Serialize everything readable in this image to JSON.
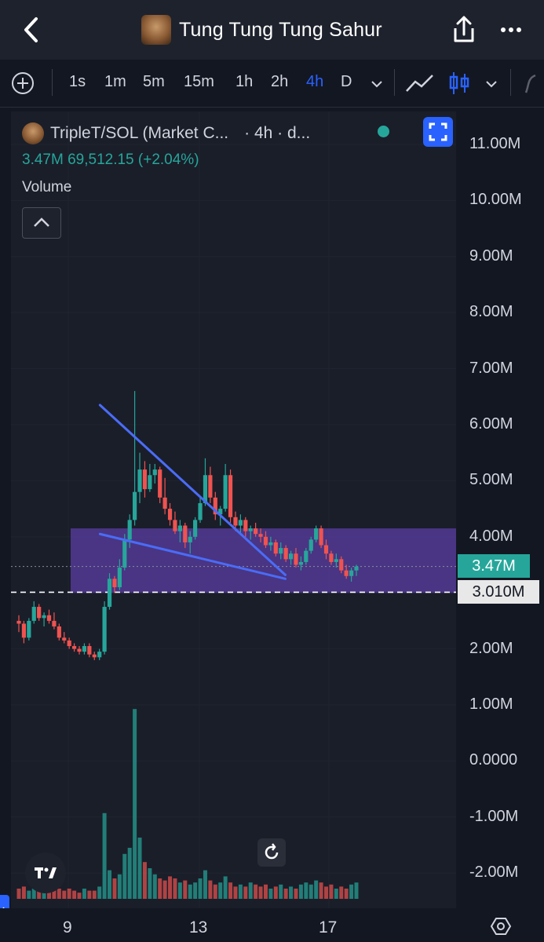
{
  "header": {
    "title": "Tung Tung Tung Sahur",
    "back_icon": "chevron-left-icon",
    "share_icon": "share-icon",
    "more_icon": "more-dots-icon"
  },
  "toolbar": {
    "timeframes": [
      "1s",
      "1m",
      "5m",
      "15m",
      "1h",
      "2h",
      "4h",
      "D"
    ],
    "active_timeframe": "4h"
  },
  "legend": {
    "symbol": "TripleT/SOL (Market C...",
    "interval": "· 4h · d...",
    "value": "3.47M",
    "change": "69,512.15 (+2.04%)",
    "volume_label": "Volume"
  },
  "price_axis": {
    "labels": [
      "11.00M",
      "10.00M",
      "9.00M",
      "8.00M",
      "7.00M",
      "6.00M",
      "5.00M",
      "4.00M",
      "2.00M",
      "1.00M",
      "0.0000",
      "-1.00M",
      "-2.00M"
    ],
    "current_price_tag": "3.47M",
    "line_price_tag": "3.010M"
  },
  "time_axis": {
    "labels": [
      "9",
      "13",
      "17"
    ]
  },
  "colors": {
    "up": "#26a69a",
    "down": "#ef5350",
    "accent": "#2962ff",
    "zone": "#5b3fa6",
    "trendline": "#4a6cf7"
  },
  "chart_data": {
    "type": "candlestick",
    "price_unit": "M",
    "ylim": [
      -2.3,
      11.5
    ],
    "zone": {
      "low": 3.0,
      "high": 4.15
    },
    "horizontal_line": 3.01,
    "current_price": 3.47,
    "trendlines": [
      {
        "from": [
          0.2404,
          6.35
        ],
        "to": [
          0.7895,
          3.32
        ]
      },
      {
        "from": [
          0.2404,
          4.05
        ],
        "to": [
          0.7895,
          3.25
        ]
      }
    ],
    "candles": [
      [
        2.5,
        2.6,
        2.3,
        2.45
      ],
      [
        2.45,
        2.5,
        2.1,
        2.2
      ],
      [
        2.2,
        2.55,
        2.15,
        2.5
      ],
      [
        2.5,
        2.85,
        2.45,
        2.75
      ],
      [
        2.75,
        2.8,
        2.5,
        2.55
      ],
      [
        2.55,
        2.65,
        2.4,
        2.6
      ],
      [
        2.6,
        2.7,
        2.45,
        2.5
      ],
      [
        2.5,
        2.65,
        2.35,
        2.4
      ],
      [
        2.4,
        2.45,
        2.15,
        2.2
      ],
      [
        2.2,
        2.3,
        2.1,
        2.15
      ],
      [
        2.15,
        2.2,
        2.0,
        2.05
      ],
      [
        2.05,
        2.1,
        1.95,
        2.0
      ],
      [
        2.0,
        2.05,
        1.9,
        1.95
      ],
      [
        1.95,
        2.1,
        1.9,
        2.05
      ],
      [
        2.05,
        2.1,
        1.85,
        1.9
      ],
      [
        1.9,
        1.95,
        1.8,
        1.85
      ],
      [
        1.85,
        2.0,
        1.8,
        1.95
      ],
      [
        1.95,
        2.85,
        1.9,
        2.75
      ],
      [
        2.75,
        3.35,
        2.7,
        3.25
      ],
      [
        3.25,
        3.3,
        3.0,
        3.1
      ],
      [
        3.1,
        3.6,
        3.05,
        3.45
      ],
      [
        3.45,
        4.05,
        3.4,
        3.95
      ],
      [
        3.95,
        4.4,
        3.8,
        4.3
      ],
      [
        4.3,
        6.6,
        4.2,
        4.8
      ],
      [
        4.8,
        5.5,
        4.6,
        5.2
      ],
      [
        5.2,
        5.35,
        4.7,
        4.85
      ],
      [
        4.85,
        5.3,
        4.8,
        5.1
      ],
      [
        5.1,
        5.3,
        4.95,
        5.2
      ],
      [
        5.2,
        5.25,
        4.6,
        4.7
      ],
      [
        4.7,
        5.05,
        4.4,
        4.5
      ],
      [
        4.5,
        4.6,
        4.2,
        4.3
      ],
      [
        4.3,
        4.45,
        4.05,
        4.1
      ],
      [
        4.1,
        4.3,
        3.9,
        4.2
      ],
      [
        4.2,
        4.25,
        3.8,
        3.9
      ],
      [
        3.9,
        4.1,
        3.7,
        4.0
      ],
      [
        4.0,
        4.35,
        3.95,
        4.3
      ],
      [
        4.3,
        4.7,
        4.25,
        4.6
      ],
      [
        4.6,
        5.4,
        4.55,
        5.1
      ],
      [
        5.1,
        5.25,
        4.6,
        4.7
      ],
      [
        4.7,
        4.8,
        4.3,
        4.4
      ],
      [
        4.4,
        4.55,
        4.2,
        4.5
      ],
      [
        4.5,
        5.3,
        4.45,
        5.1
      ],
      [
        5.1,
        5.2,
        4.25,
        4.35
      ],
      [
        4.35,
        4.45,
        4.1,
        4.2
      ],
      [
        4.2,
        4.4,
        4.05,
        4.3
      ],
      [
        4.3,
        4.35,
        4.0,
        4.1
      ],
      [
        4.1,
        4.2,
        3.95,
        4.15
      ],
      [
        4.15,
        4.25,
        4.0,
        4.05
      ],
      [
        4.05,
        4.15,
        3.9,
        4.0
      ],
      [
        4.0,
        4.1,
        3.8,
        3.85
      ],
      [
        3.85,
        4.0,
        3.75,
        3.9
      ],
      [
        3.9,
        3.95,
        3.65,
        3.7
      ],
      [
        3.7,
        3.9,
        3.6,
        3.8
      ],
      [
        3.8,
        3.85,
        3.55,
        3.6
      ],
      [
        3.6,
        3.75,
        3.5,
        3.7
      ],
      [
        3.7,
        3.8,
        3.45,
        3.5
      ],
      [
        3.5,
        3.65,
        3.4,
        3.55
      ],
      [
        3.55,
        3.8,
        3.5,
        3.75
      ],
      [
        3.75,
        4.0,
        3.7,
        3.95
      ],
      [
        3.95,
        4.2,
        3.9,
        4.15
      ],
      [
        4.15,
        4.2,
        3.8,
        3.85
      ],
      [
        3.85,
        3.95,
        3.6,
        3.7
      ],
      [
        3.7,
        3.75,
        3.5,
        3.55
      ],
      [
        3.55,
        3.7,
        3.45,
        3.6
      ],
      [
        3.6,
        3.65,
        3.35,
        3.4
      ],
      [
        3.4,
        3.5,
        3.25,
        3.3
      ],
      [
        3.3,
        3.45,
        3.2,
        3.4
      ],
      [
        3.4,
        3.5,
        3.3,
        3.47
      ]
    ],
    "volumes": [
      0.05,
      0.06,
      0.04,
      0.05,
      0.07,
      0.05,
      0.04,
      0.06,
      0.05,
      0.04,
      0.05,
      0.04,
      0.03,
      0.05,
      0.04,
      0.04,
      0.06,
      0.42,
      0.14,
      0.1,
      0.12,
      0.22,
      0.25,
      0.93,
      0.3,
      0.18,
      0.15,
      0.12,
      0.1,
      0.09,
      0.11,
      0.1,
      0.08,
      0.09,
      0.07,
      0.08,
      0.1,
      0.14,
      0.09,
      0.07,
      0.08,
      0.11,
      0.08,
      0.06,
      0.07,
      0.06,
      0.08,
      0.07,
      0.06,
      0.07,
      0.05,
      0.06,
      0.07,
      0.05,
      0.06,
      0.05,
      0.07,
      0.08,
      0.07,
      0.09,
      0.08,
      0.06,
      0.07,
      0.05,
      0.06,
      0.05,
      0.07,
      0.08
    ]
  }
}
